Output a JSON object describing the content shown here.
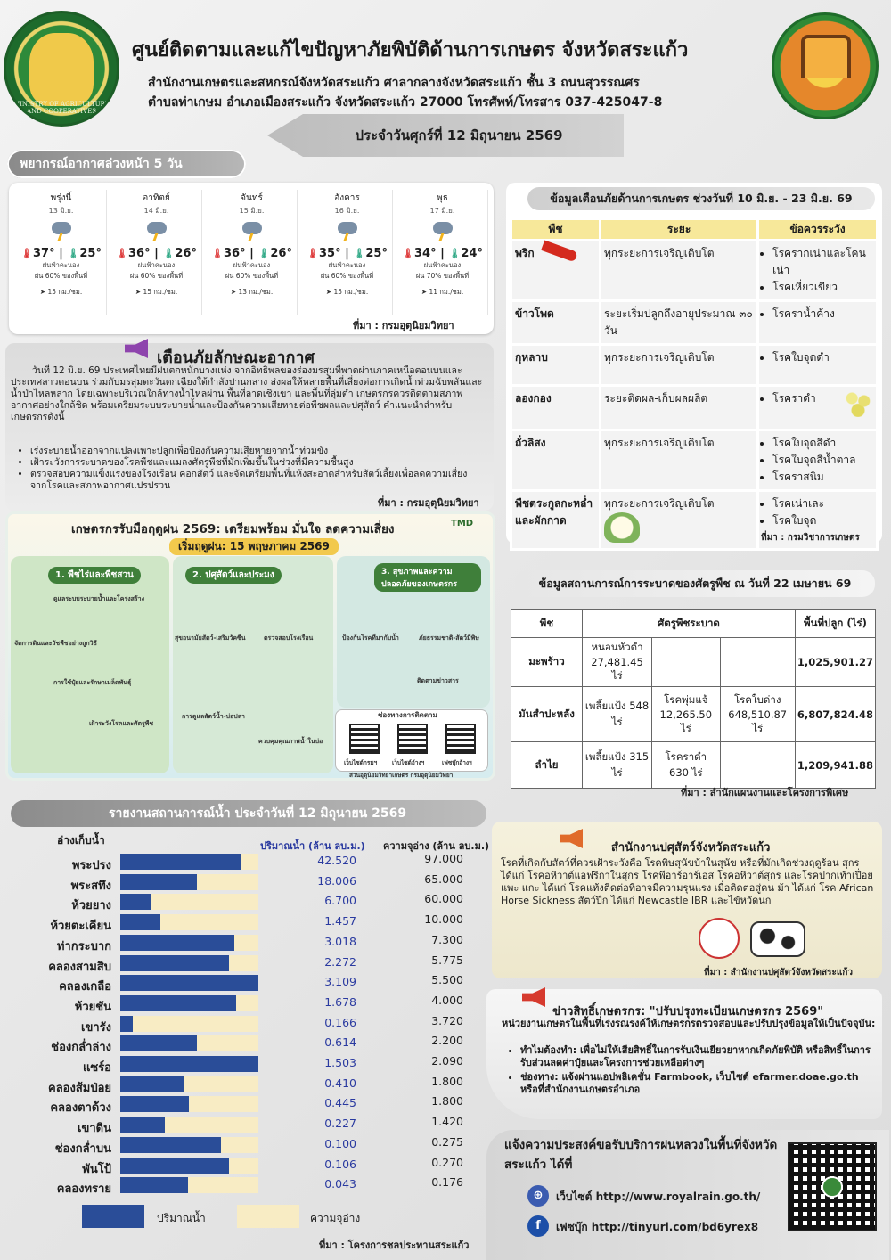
{
  "header": {
    "title": "ศูนย์ติดตามและแก้ไขปัญหาภัยพิบัติด้านการเกษตร จังหวัดสระแก้ว",
    "sub1": "สำนักงานเกษตรและสหกรณ์จังหวัดสระแก้ว ศาลากลางจังหวัดสระแก้ว ชั้น 3 ถนนสุวรรณศร",
    "sub2": "ตำบลท่าเกษม อำเภอเมืองสระแก้ว จังหวัดสระแก้ว 27000 โทรศัพท์/โทรสาร 037-425047-8",
    "date": "ประจำวันศุกร์ที่ 12 มิถุนายน 2569",
    "left_logo_text": "MINISTRY OF AGRICULTURE AND COOPERATIVES"
  },
  "forecast": {
    "title": "พยากรณ์อากาศล่วงหน้า 5 วัน",
    "source": "ที่มา : กรมอุตุนิยมวิทยา",
    "days": [
      {
        "name": "พรุ่งนี้",
        "date": "13 มิ.ย.",
        "hi": "37°",
        "lo": "25°",
        "cond": "ฝนฟ้าคะนอง",
        "rain": "ฝน 60% ของพื้นที่",
        "wind": "15 กม./ชม."
      },
      {
        "name": "อาทิตย์",
        "date": "14 มิ.ย.",
        "hi": "36°",
        "lo": "26°",
        "cond": "ฝนฟ้าคะนอง",
        "rain": "ฝน 60% ของพื้นที่",
        "wind": "15 กม./ชม."
      },
      {
        "name": "จันทร์",
        "date": "15 มิ.ย.",
        "hi": "36°",
        "lo": "26°",
        "cond": "ฝนฟ้าคะนอง",
        "rain": "ฝน 60% ของพื้นที่",
        "wind": "13 กม./ชม."
      },
      {
        "name": "อังคาร",
        "date": "16 มิ.ย.",
        "hi": "35°",
        "lo": "25°",
        "cond": "ฝนฟ้าคะนอง",
        "rain": "ฝน 60% ของพื้นที่",
        "wind": "15 กม./ชม."
      },
      {
        "name": "พุธ",
        "date": "17 มิ.ย.",
        "hi": "34°",
        "lo": "24°",
        "cond": "ฝนฟ้าคะนอง",
        "rain": "ฝน 70% ของพื้นที่",
        "wind": "11 กม./ชม."
      }
    ],
    "icons": {
      "cloud": "thunder-cloud-icon",
      "hi": "thermometer-hot-icon",
      "lo": "thermometer-cold-icon",
      "wind": "wind-arrow-icon"
    }
  },
  "warning": {
    "title": "เตือนภัยลักษณะอากาศ",
    "body": "วันที่ 12 มิ.ย. 69 ประเทศไทยมีฝนตกหนักบางแห่ง จากอิทธิพลของร่องมรสุมที่พาดผ่านภาคเหนือตอนบนและประเทศลาวตอนบน ร่วมกับมรสุมตะวันตกเฉียงใต้กำลังปานกลาง ส่งผลให้หลายพื้นที่เสี่ยงต่อการเกิดน้ำท่วมฉับพลันและน้ำป่าไหลหลาก โดยเฉพาะบริเวณใกล้ทางน้ำไหลผ่าน พื้นที่ลาดเชิงเขา และพื้นที่ลุ่มต่ำ เกษตรกรควรติดตามสภาพอากาศอย่างใกล้ชิด พร้อมเตรียมระบบระบายน้ำและป้องกันความเสียหายต่อพืชผลและปศุสัตว์ คำแนะนำสำหรับเกษตรกรดังนี้",
    "items": [
      "เร่งระบายน้ำออกจากแปลงเพาะปลูกเพื่อป้องกันความเสียหายจากน้ำท่วมขัง",
      "เฝ้าระวังการระบาดของโรคพืชและแมลงศัตรูพืชที่มักเพิ่มขึ้นในช่วงที่มีความชื้นสูง",
      "ตรวจสอบความแข็งแรงของโรงเรือน คอกสัตว์ และจัดเตรียมพื้นที่แห้งสะอาดสำหรับสัตว์เลี้ยงเพื่อลดความเสี่ยงจากโรคและสภาพอากาศแปรปรวน"
    ],
    "source": "ที่มา : กรมอุตุนิยมวิทยา"
  },
  "rainy": {
    "title": "เกษตรกรรับมือฤดูฝน 2569: เตรียมพร้อม มั่นใจ ลดความเสี่ยง",
    "start": "เริ่มฤดูฝน: 15 พฤษภาคม 2569",
    "logo_text": "TMD",
    "panels": [
      {
        "title": "1. พืชไร่และพืชสวน",
        "tips": [
          "ดูแลระบบระบายน้ำและโครงสร้าง",
          "จัดการดินและวัชพืชอย่างถูกวิธี",
          "การใช้ปุ๋ยและรักษาเมล็ดพันธุ์",
          "เฝ้าระวังโรคและศัตรูพืช"
        ]
      },
      {
        "title": "2. ปศุสัตว์และประมง",
        "tips": [
          "สุขอนามัยสัตว์-เสริมวัคซีน",
          "ตรวจสอบโรงเรือน",
          "การดูแลสัตว์น้ำ-บ่อปลา",
          "ควบคุมคุณภาพน้ำในบ่อ"
        ]
      },
      {
        "title": "3. สุขภาพและความปลอดภัยของเกษตรกร",
        "tips": [
          "ป้องกันโรคที่มากับน้ำ",
          "ภัยธรรมชาติ-สัตว์มีพิษ",
          "ติดตามข่าวสาร"
        ]
      }
    ],
    "channels_title": "ช่องทางการติดตาม",
    "channels": [
      "เว็บไซต์กรมฯ",
      "เว็บไซต์อ้างฯ",
      "เฟซบุ๊กอ้างฯ"
    ],
    "credit": "ส่วนอุตุนิยมวิทยาเกษตร กรมอุตุนิยมวิทยา"
  },
  "pest": {
    "title": "ข้อมูลเตือนภัยด้านการเกษตร ช่วงวันที่ 10 มิ.ย. - 23 มิ.ย. 69",
    "headers": [
      "พืช",
      "ระยะ",
      "ข้อควรระวัง"
    ],
    "rows": [
      {
        "crop": "พริก",
        "stage": "ทุกระยะการเจริญเติบโต",
        "cautions": [
          "โรครากเน่าและโคนเน่า",
          "โรคเหี่ยวเขียว"
        ],
        "img": "chili-icon"
      },
      {
        "crop": "ข้าวโพด",
        "stage": "ระยะเริ่มปลูกถึงอายุประมาณ ๓๐ วัน",
        "cautions": [
          "โรคราน้ำค้าง"
        ]
      },
      {
        "crop": "กุหลาบ",
        "stage": "ทุกระยะการเจริญเติบโต",
        "cautions": [
          "โรคใบจุดดำ"
        ]
      },
      {
        "crop": "ลองกอง",
        "stage": "ระยะติดผล-เก็บผลผลิต",
        "cautions": [
          "โรคราดำ"
        ],
        "img": "longkong-icon"
      },
      {
        "crop": "ถั่วลิสง",
        "stage": "ทุกระยะการเจริญเติบโต",
        "cautions": [
          "โรคใบจุดสีดำ",
          "โรคใบจุดสีน้ำตาล",
          "โรคราสนิม"
        ]
      },
      {
        "crop": "พืชตระกูลกะหล่ำและผักกาด",
        "stage": "ทุกระยะการเจริญเติบโต",
        "cautions": [
          "โรคเน่าเละ",
          "โรคใบจุด"
        ],
        "img": "cauliflower-icon"
      }
    ],
    "source": "ที่มา : กรมวิชาการเกษตร"
  },
  "outbreak": {
    "title": "ข้อมูลสถานการณ์การระบาดของศัตรูพืช ณ วันที่ 22 เมษายน 69",
    "headers": [
      "พืช",
      "ศัตรูพืชระบาด",
      "พื้นที่ปลูก (ไร่)"
    ],
    "rows": [
      {
        "crop": "มะพร้าว",
        "p1": "หนอนหัวดำ 27,481.45 ไร่",
        "p2": "",
        "p3": "",
        "area": "1,025,901.27"
      },
      {
        "crop": "มันสำปะหลัง",
        "p1": "เพลี้ยแป้ง 548 ไร่",
        "p2": "โรคพุ่มแจ้ 12,265.50 ไร่",
        "p3": "โรคใบด่าง 648,510.87 ไร่",
        "area": "6,807,824.48"
      },
      {
        "crop": "ลำไย",
        "p1": "เพลี้ยแป้ง 315 ไร่",
        "p2": "โรคราดำ 630 ไร่",
        "p3": "",
        "area": "1,209,941.88"
      }
    ],
    "source": "ที่มา : สำนักแผนงานและโครงการพิเศษ"
  },
  "water": {
    "title": "รายงานสถานการณ์น้ำ ประจำวันที่ 12 มิถุนายน 2569",
    "col_name": "อ่างเก็บน้ำ",
    "col_vol": "ปริมาณน้ำ (ล้าน ลบ.ม.)",
    "col_cap": "ความจุอ่าง (ล้าน ลบ.ม.)",
    "legend_vol": "ปริมาณน้ำ",
    "legend_cap": "ความจุอ่าง",
    "source": "ที่มา : โครงการชลประทานสระแก้ว",
    "colors": {
      "vol": "#2a4d98",
      "cap": "#f8ecc4"
    },
    "reservoirs": [
      {
        "name": "พระปรง",
        "vol": "42.520",
        "cap": "97.000",
        "pct": 0.438
      },
      {
        "name": "พระสทึง",
        "vol": "18.006",
        "cap": "65.000",
        "pct": 0.277
      },
      {
        "name": "ห้วยยาง",
        "vol": "6.700",
        "cap": "60.000",
        "pct": 0.112
      },
      {
        "name": "ห้วยตะเคียน",
        "vol": "1.457",
        "cap": "10.000",
        "pct": 0.146
      },
      {
        "name": "ท่ากระบาก",
        "vol": "3.018",
        "cap": "7.300",
        "pct": 0.413
      },
      {
        "name": "คลองสามสิบ",
        "vol": "2.272",
        "cap": "5.775",
        "pct": 0.393
      },
      {
        "name": "คลองเกลือ",
        "vol": "3.109",
        "cap": "5.500",
        "pct": 0.565
      },
      {
        "name": "ห้วยชัน",
        "vol": "1.678",
        "cap": "4.000",
        "pct": 0.42
      },
      {
        "name": "เขารัง",
        "vol": "0.166",
        "cap": "3.720",
        "pct": 0.045
      },
      {
        "name": "ช่องกล่ำล่าง",
        "vol": "0.614",
        "cap": "2.200",
        "pct": 0.279
      },
      {
        "name": "แซร์อ",
        "vol": "1.503",
        "cap": "2.090",
        "pct": 0.719
      },
      {
        "name": "คลองส้มป่อย",
        "vol": "0.410",
        "cap": "1.800",
        "pct": 0.228
      },
      {
        "name": "คลองตาด้วง",
        "vol": "0.445",
        "cap": "1.800",
        "pct": 0.247
      },
      {
        "name": "เขาดิน",
        "vol": "0.227",
        "cap": "1.420",
        "pct": 0.16
      },
      {
        "name": "ช่องกล่ำบน",
        "vol": "0.100",
        "cap": "0.275",
        "pct": 0.364
      },
      {
        "name": "พันโป้",
        "vol": "0.106",
        "cap": "0.270",
        "pct": 0.393
      },
      {
        "name": "คลองทราย",
        "vol": "0.043",
        "cap": "0.176",
        "pct": 0.244
      }
    ]
  },
  "livestock": {
    "title": "สำนักงานปศุสัตว์จังหวัดสระแก้ว",
    "body": "โรคที่เกิดกับสัตว์ที่ควรเฝ้าระวังคือ โรคพิษสุนัขบ้าในสุนัข หรือที่มักเกิดช่วงฤดูร้อน สุกร ได้แก่ โรคอหิวาต์แอฟริกาในสุกร โรคพีอาร์อาร์เอส โรคอหิวาต์สุกร และโรคปากเท้าเปื่อย แพะ แกะ ได้แก่ โรคแท้งติดต่อที่อาจมีความรุนแรง เมื่อติดต่อสู่คน ม้า ได้แก่ โรค African Horse Sickness สัตว์ปีก ได้แก่ Newcastle IBR และไข้หวัดนก",
    "source": "ที่มา : สำนักงานปศุสัตว์จังหวัดสระแก้ว"
  },
  "rights": {
    "title": "ข่าวสิทธิ์เกษตรกร: \"ปรับปรุงทะเบียนเกษตรกร 2569\"",
    "intro": "หน่วยงานเกษตรในพื้นที่เร่งรณรงค์ให้เกษตรกรตรวจสอบและปรับปรุงข้อมูลให้เป็นปัจจุบัน:",
    "items": [
      "ทำไมต้องทำ: เพื่อไม่ให้เสียสิทธิ์ในการรับเงินเยียวยาหากเกิดภัยพิบัติ หรือสิทธิ์ในการรับส่วนลดค่าปุ๋ยและโครงการช่วยเหลือต่างๆ",
      "ช่องทาง: แจ้งผ่านแอปพลิเคชั่น Farmbook, เว็บไซต์ efarmer.doae.go.th หรือที่สำนักงานเกษตรอำเภอ"
    ]
  },
  "royal": {
    "title": "แจ้งความประสงค์ขอรับบริการฝนหลวงในพื้นที่จังหวัดสระแก้ว ได้ที่",
    "web": "เว็บไซต์ http://www.royalrain.go.th/",
    "fb": "เฟซบุ๊ก http://tinyurl.com/bd6yrex8"
  }
}
